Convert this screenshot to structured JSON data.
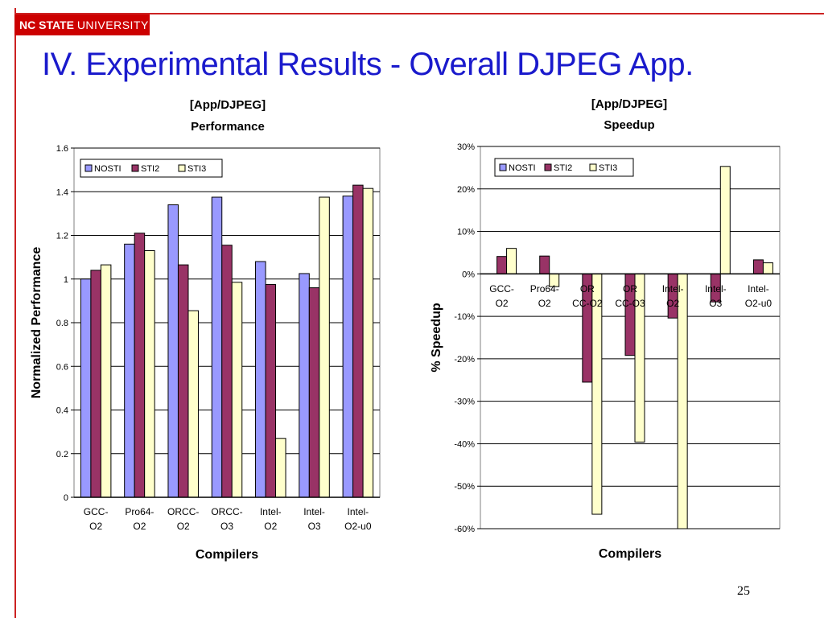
{
  "header": {
    "logo_text_bold": "NC STATE",
    "logo_text_light": "UNIVERSITY",
    "slide_title": "IV. Experimental Results - Overall DJPEG App.",
    "page_number": "25"
  },
  "colors": {
    "accent": "#cc0000",
    "title": "#1a1acc",
    "series_nosti": "#9999ff",
    "series_sti2": "#993366",
    "series_sti3": "#ffffcc"
  },
  "chart_data": [
    {
      "type": "bar",
      "title": "[App/DJPEG]",
      "subtitle": "Performance",
      "xlabel": "Compilers",
      "ylabel": "Normalized Performance",
      "ylim": [
        0,
        1.6
      ],
      "yticks": [
        "0",
        "0.2",
        "0.4",
        "0.6",
        "0.8",
        "1",
        "1.2",
        "1.4",
        "1.6"
      ],
      "categories": [
        [
          "GCC-",
          "O2"
        ],
        [
          "Pro64-",
          "O2"
        ],
        [
          "ORCC-",
          "O2"
        ],
        [
          "ORCC-",
          "O3"
        ],
        [
          "Intel-",
          "O2"
        ],
        [
          "Intel-",
          "O3"
        ],
        [
          "Intel-",
          "O2-u0"
        ]
      ],
      "series": [
        {
          "name": "NOSTI",
          "values": [
            1.0,
            1.16,
            1.34,
            1.375,
            1.08,
            1.025,
            1.38
          ]
        },
        {
          "name": "STI2",
          "values": [
            1.04,
            1.21,
            1.065,
            1.155,
            0.975,
            0.96,
            1.43
          ]
        },
        {
          "name": "STI3",
          "values": [
            1.065,
            1.13,
            0.855,
            0.985,
            0.27,
            1.375,
            1.415
          ]
        }
      ],
      "grid": true,
      "legend": "top-left"
    },
    {
      "type": "bar",
      "title": "[App/DJPEG]",
      "subtitle": "Speedup",
      "xlabel": "Compilers",
      "ylabel": "% Speedup",
      "ylim": [
        -60,
        30
      ],
      "yticks": [
        "-60%",
        "-50%",
        "-40%",
        "-30%",
        "-20%",
        "-10%",
        "0%",
        "10%",
        "20%",
        "30%"
      ],
      "categories": [
        [
          "GCC-",
          "O2"
        ],
        [
          "Pro64-",
          "O2"
        ],
        [
          "OR",
          "CC-O2"
        ],
        [
          "OR",
          "CC-O3"
        ],
        [
          "Intel-",
          "O2"
        ],
        [
          "Intel-",
          "O3"
        ],
        [
          "Intel-",
          "O2-u0"
        ]
      ],
      "series": [
        {
          "name": "NOSTI",
          "values": [
            0,
            0,
            0,
            0,
            0,
            0,
            0
          ]
        },
        {
          "name": "STI2",
          "values": [
            4.1,
            4.2,
            -25.5,
            -19.2,
            -10.4,
            -6.6,
            3.3
          ]
        },
        {
          "name": "STI3",
          "values": [
            6.0,
            -3.0,
            -56.6,
            -39.6,
            -60.7,
            25.3,
            2.6
          ]
        }
      ],
      "grid": true,
      "legend": "top-left"
    }
  ]
}
